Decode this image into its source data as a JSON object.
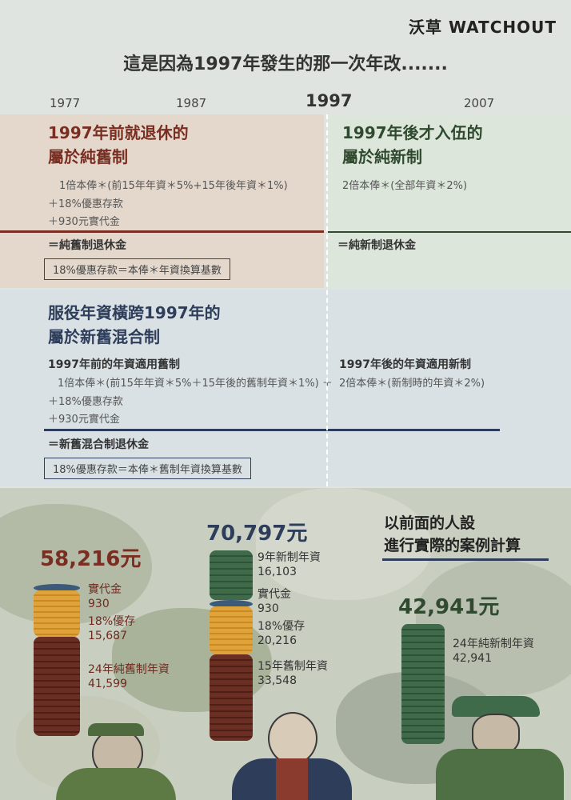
{
  "brand": "沃草 WATCHOUT",
  "headline": "這是因為1997年發生的那一次年改.......",
  "years": [
    "1977",
    "1987",
    "1997",
    "2007"
  ],
  "old_system": {
    "title_line1": "1997年前就退休的",
    "title_line2": "屬於純舊制",
    "formula1": "1倍本俸＊(前15年年資＊5%+15年後年資＊1%)",
    "formula2": "＋18%優惠存款",
    "formula3": "＋930元實代金",
    "result": "＝純舊制退休金",
    "note": "18%優惠存款＝本俸＊年資換算基數"
  },
  "new_system": {
    "title_line1": "1997年後才入伍的",
    "title_line2": "屬於純新制",
    "formula1": "2倍本俸＊(全部年資＊2%)",
    "result": "＝純新制退休金"
  },
  "mixed_system": {
    "title_line1": "服役年資橫跨1997年的",
    "title_line2": "屬於新舊混合制",
    "old_sub": "1997年前的年資適用舊制",
    "old_formula1": "1倍本俸＊(前15年年資＊5%＋15年後的舊制年資＊1%) ＋",
    "old_formula2": "＋18%優惠存款",
    "old_formula3": "＋930元實代金",
    "new_sub": "1997年後的年資適用新制",
    "new_formula": "2倍本俸＊(新制時的年資＊2%)",
    "result": "＝新舊混合制退休金",
    "note": "18%優惠存款＝本俸＊舊制年資換算基數"
  },
  "cases": {
    "intro_line1": "以前面的人設",
    "intro_line2": "進行實際的案例計算",
    "case1": {
      "total": "58,216元",
      "items": [
        {
          "label": "實代金",
          "value": "930"
        },
        {
          "label": "18%優存",
          "value": "15,687"
        },
        {
          "label": "24年純舊制年資",
          "value": "41,599"
        }
      ]
    },
    "case2": {
      "total": "70,797元",
      "items": [
        {
          "label": "9年新制年資",
          "value": "16,103"
        },
        {
          "label": "實代金",
          "value": "930"
        },
        {
          "label": "18%優存",
          "value": "20,216"
        },
        {
          "label": "15年舊制年資",
          "value": "33,548"
        }
      ]
    },
    "case3": {
      "total": "42,941元",
      "items": [
        {
          "label": "24年純新制年資",
          "value": "42,941"
        }
      ]
    }
  },
  "colors": {
    "old_red": "#7a2e22",
    "new_green": "#2f4a2f",
    "mix_blue": "#2d3d5a",
    "coin_gold": "#e0a33a",
    "coin_brown": "#6b2e22",
    "coin_green": "#3f6b4a",
    "coin_blue": "#3c5a7a"
  }
}
